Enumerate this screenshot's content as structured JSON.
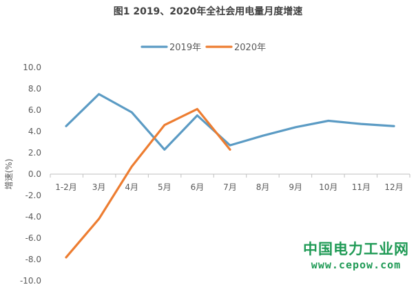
{
  "chart_data": {
    "type": "line",
    "title": "图1 2019、2020年全社会用电量月度增速",
    "ylabel": "增速(%)",
    "xlabel": "",
    "ylim": [
      -10.0,
      10.0
    ],
    "y_ticks": [
      "10.0",
      "8.0",
      "6.0",
      "4.0",
      "2.0",
      "0.0",
      "-2.0",
      "-4.0",
      "-6.0",
      "-8.0",
      "-10.0"
    ],
    "categories": [
      "1-2月",
      "3月",
      "4月",
      "5月",
      "6月",
      "7月",
      "8月",
      "9月",
      "10月",
      "11月",
      "12月"
    ],
    "legend_position": "top-center",
    "grid": false,
    "series": [
      {
        "name": "2019年",
        "color": "#5b9bc4",
        "values": [
          4.5,
          7.5,
          5.8,
          2.3,
          5.5,
          2.7,
          3.6,
          4.4,
          5.0,
          4.7,
          4.5
        ]
      },
      {
        "name": "2020年",
        "color": "#ed7d31",
        "values": [
          -7.8,
          -4.2,
          0.7,
          4.6,
          6.1,
          2.3,
          null,
          null,
          null,
          null,
          null
        ]
      }
    ]
  },
  "watermark": {
    "name": "中国电力工业网",
    "url": "www.cepow.com"
  }
}
